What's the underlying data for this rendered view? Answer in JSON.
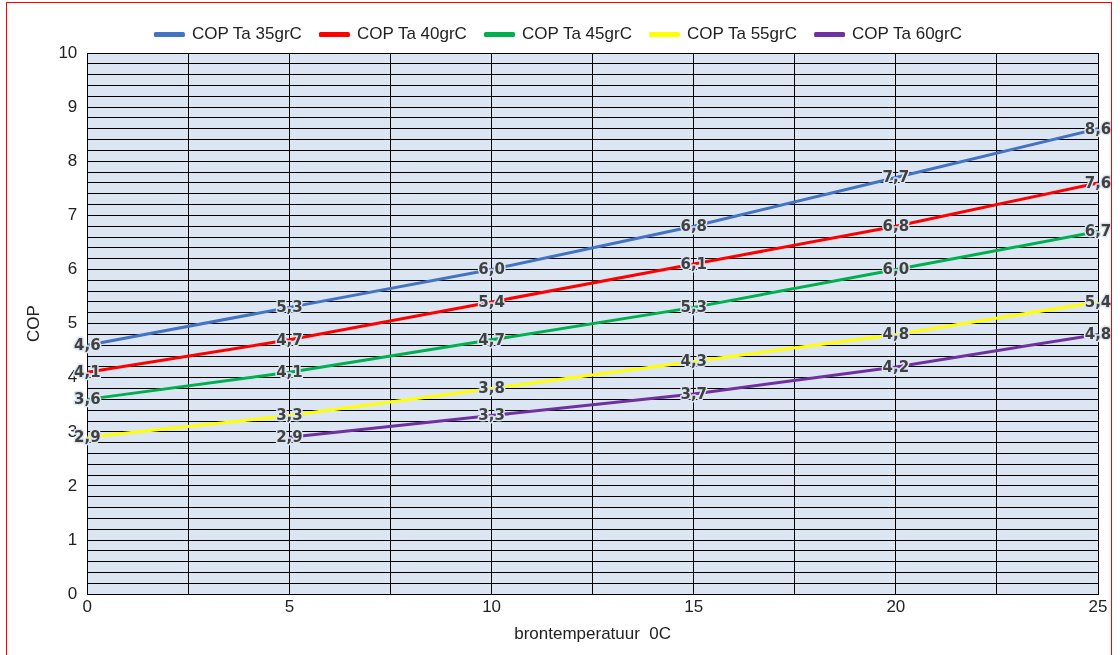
{
  "chart_data": {
    "type": "line",
    "xlabel": "brontemperatuur  0C",
    "ylabel": "COP",
    "x": [
      0,
      5,
      10,
      15,
      20,
      25
    ],
    "xlim": [
      0,
      25
    ],
    "xticks": [
      0,
      {
        "value": 2.5,
        "label": null
      },
      5,
      {
        "value": 7.5,
        "label": null
      },
      10,
      {
        "value": 12.5,
        "label": null
      },
      15,
      {
        "value": 17.5,
        "label": null
      },
      20,
      {
        "value": 22.5,
        "label": null
      },
      25
    ],
    "ylim": [
      0,
      10
    ],
    "yticks": [
      0,
      {
        "value": 0.2,
        "label": null
      },
      {
        "value": 0.4,
        "label": null
      },
      {
        "value": 0.6,
        "label": null
      },
      {
        "value": 0.8,
        "label": null
      },
      1,
      {
        "value": 1.2,
        "label": null
      },
      {
        "value": 1.4,
        "label": null
      },
      {
        "value": 1.6,
        "label": null
      },
      {
        "value": 1.8,
        "label": null
      },
      2,
      {
        "value": 2.2,
        "label": null
      },
      {
        "value": 2.4,
        "label": null
      },
      {
        "value": 2.6,
        "label": null
      },
      {
        "value": 2.8,
        "label": null
      },
      3,
      {
        "value": 3.2,
        "label": null
      },
      {
        "value": 3.4,
        "label": null
      },
      {
        "value": 3.6,
        "label": null
      },
      {
        "value": 3.8,
        "label": null
      },
      4,
      {
        "value": 4.2,
        "label": null
      },
      {
        "value": 4.4,
        "label": null
      },
      {
        "value": 4.6,
        "label": null
      },
      {
        "value": 4.8,
        "label": null
      },
      5,
      {
        "value": 5.2,
        "label": null
      },
      {
        "value": 5.4,
        "label": null
      },
      {
        "value": 5.6,
        "label": null
      },
      {
        "value": 5.8,
        "label": null
      },
      6,
      {
        "value": 6.2,
        "label": null
      },
      {
        "value": 6.4,
        "label": null
      },
      {
        "value": 6.6,
        "label": null
      },
      {
        "value": 6.8,
        "label": null
      },
      7,
      {
        "value": 7.2,
        "label": null
      },
      {
        "value": 7.4,
        "label": null
      },
      {
        "value": 7.6,
        "label": null
      },
      {
        "value": 7.8,
        "label": null
      },
      8,
      {
        "value": 8.2,
        "label": null
      },
      {
        "value": 8.4,
        "label": null
      },
      {
        "value": 8.6,
        "label": null
      },
      {
        "value": 8.8,
        "label": null
      },
      9,
      {
        "value": 9.2,
        "label": null
      },
      {
        "value": 9.4,
        "label": null
      },
      {
        "value": 9.6,
        "label": null
      },
      {
        "value": 9.8,
        "label": null
      },
      10
    ],
    "grid": true,
    "legend": "top",
    "marker": "none",
    "line_style": "solid",
    "series": [
      {
        "name": "COP Ta 35grC",
        "color": "#4472c4",
        "values": [
          4.6,
          5.3,
          6.0,
          6.8,
          7.7,
          8.6
        ],
        "value_labels": [
          "4,6",
          "5,3",
          "6,0",
          "6,8",
          "7,7",
          "8,6"
        ]
      },
      {
        "name": "COP Ta 40grC",
        "color": "#ff0000",
        "values": [
          4.1,
          4.7,
          5.4,
          6.1,
          6.8,
          7.6
        ],
        "value_labels": [
          "4,1",
          "4,7",
          "5,4",
          "6,1",
          "6,8",
          "7,6"
        ]
      },
      {
        "name": "COP Ta 45grC",
        "color": "#00b050",
        "values": [
          3.6,
          4.1,
          4.7,
          5.3,
          6.0,
          6.7
        ],
        "value_labels": [
          "3,6",
          "4,1",
          "4,7",
          "5,3",
          "6,0",
          "6,7"
        ]
      },
      {
        "name": "COP Ta 55grC",
        "color": "#ffff00",
        "values": [
          2.9,
          3.3,
          3.8,
          4.3,
          4.8,
          5.4
        ],
        "value_labels": [
          "2,9",
          "3,3",
          "3,8",
          "4,3",
          "4,8",
          "5,4"
        ]
      },
      {
        "name": "COP Ta 60grC",
        "color": "#7030a0",
        "x": [
          5,
          10,
          15,
          20,
          25
        ],
        "values": [
          2.9,
          3.3,
          3.7,
          4.2,
          4.8
        ],
        "value_labels": [
          "2,9",
          "3,3",
          "3,7",
          "4,2",
          "4,8"
        ]
      }
    ]
  }
}
